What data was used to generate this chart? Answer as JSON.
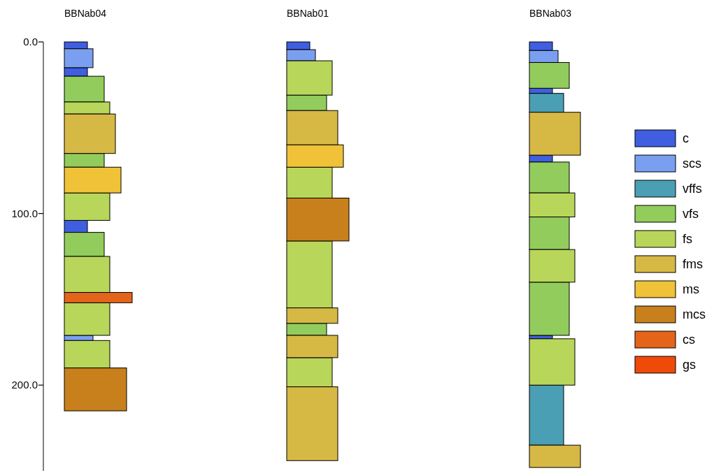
{
  "chart_data": {
    "type": "bar",
    "categories": [
      "BBNab04",
      "BBNab01",
      "BBNab03"
    ],
    "ylim": [
      250,
      0
    ],
    "yticks": [
      {
        "value": 0,
        "label": "0.0"
      },
      {
        "value": 100,
        "label": "100.0"
      },
      {
        "value": 200,
        "label": "200.0"
      }
    ],
    "grid": false,
    "legend": "right",
    "series": [
      {
        "name": "c",
        "color": "#3f5fe0",
        "x": [
          "BBNab04",
          "BBNab04",
          "BBNab04",
          "BBNab01",
          "BBNab03",
          "BBNab03",
          "BBNab03",
          "BBNab03"
        ],
        "base": [
          0,
          15,
          104,
          0,
          0,
          27,
          66,
          171
        ],
        "values": [
          4,
          5,
          7,
          4.5,
          5,
          3,
          4,
          2
        ]
      },
      {
        "name": "scs",
        "color": "#7b9ff0",
        "x": [
          "BBNab04",
          "BBNab04",
          "BBNab01",
          "BBNab03"
        ],
        "base": [
          4,
          171,
          4.5,
          5
        ],
        "values": [
          11,
          3,
          6.5,
          7
        ]
      },
      {
        "name": "vffs",
        "color": "#4a9fb4",
        "x": [
          "BBNab03",
          "BBNab03"
        ],
        "base": [
          30,
          200
        ],
        "values": [
          11,
          35
        ]
      },
      {
        "name": "vfs",
        "color": "#92cc5c",
        "x": [
          "BBNab04",
          "BBNab04",
          "BBNab04",
          "BBNab01",
          "BBNab01",
          "BBNab03",
          "BBNab03",
          "BBNab03",
          "BBNab03"
        ],
        "base": [
          20,
          65,
          111,
          31,
          164,
          12,
          70,
          102,
          140
        ],
        "values": [
          15,
          8,
          14,
          9,
          7,
          15,
          18,
          19,
          31
        ]
      },
      {
        "name": "fs",
        "color": "#b8d65a",
        "x": [
          "BBNab04",
          "BBNab04",
          "BBNab04",
          "BBNab04",
          "BBNab04",
          "BBNab01",
          "BBNab01",
          "BBNab01",
          "BBNab01",
          "BBNab03",
          "BBNab03",
          "BBNab03"
        ],
        "base": [
          35,
          88,
          125,
          152,
          174,
          11,
          73,
          116,
          184,
          88,
          121,
          173
        ],
        "values": [
          7,
          16,
          21,
          19,
          16,
          20,
          18,
          39,
          17,
          14,
          19,
          27
        ]
      },
      {
        "name": "fms",
        "color": "#d6b845",
        "x": [
          "BBNab04",
          "BBNab01",
          "BBNab01",
          "BBNab01",
          "BBNab01",
          "BBNab03",
          "BBNab03"
        ],
        "base": [
          42,
          40,
          155,
          171,
          201,
          41,
          235
        ],
        "values": [
          23,
          20,
          9,
          13,
          43,
          25,
          13
        ]
      },
      {
        "name": "ms",
        "color": "#f0c238",
        "x": [
          "BBNab04",
          "BBNab01"
        ],
        "base": [
          73,
          60
        ],
        "values": [
          15,
          13
        ]
      },
      {
        "name": "mcs",
        "color": "#c8801c",
        "x": [
          "BBNab04",
          "BBNab01"
        ],
        "base": [
          190,
          91
        ],
        "values": [
          25,
          25
        ]
      },
      {
        "name": "cs",
        "color": "#e4651a",
        "x": [
          "BBNab04"
        ],
        "base": [
          146
        ],
        "values": [
          6
        ]
      },
      {
        "name": "gs",
        "color": "#f04a08",
        "values": [
          null,
          null,
          null
        ]
      }
    ]
  }
}
